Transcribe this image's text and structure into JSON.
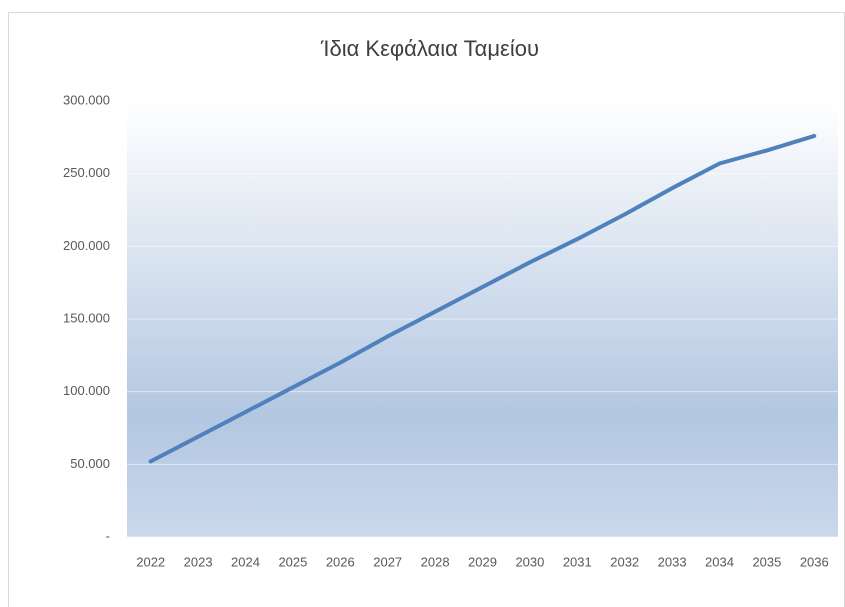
{
  "chart_data": {
    "type": "line",
    "title": "Ίδια Κεφάλαια Ταμείου",
    "categories": [
      "2022",
      "2023",
      "2024",
      "2025",
      "2026",
      "2027",
      "2028",
      "2029",
      "2030",
      "2031",
      "2032",
      "2033",
      "2034",
      "2035",
      "2036"
    ],
    "values": [
      52000,
      69000,
      86000,
      103000,
      120000,
      138000,
      155000,
      172000,
      189000,
      205000,
      222000,
      240000,
      257000,
      266000,
      276000
    ],
    "color": "#4f81bd",
    "ylim": [
      0,
      300000
    ],
    "yticks": [
      {
        "value": 0,
        "label": "-"
      },
      {
        "value": 50000,
        "label": "50.000"
      },
      {
        "value": 100000,
        "label": "100.000"
      },
      {
        "value": 150000,
        "label": "150.000"
      },
      {
        "value": 200000,
        "label": "200.000"
      },
      {
        "value": 250000,
        "label": "250.000"
      },
      {
        "value": 300000,
        "label": "300.000"
      }
    ],
    "grid": true
  }
}
